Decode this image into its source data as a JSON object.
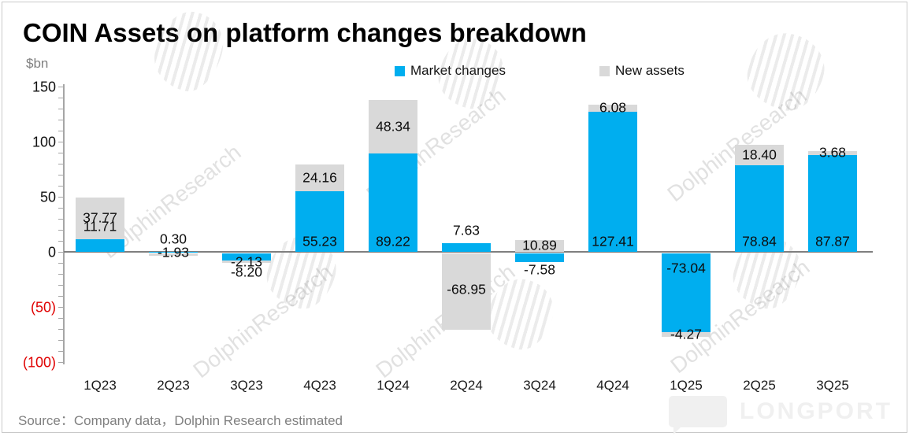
{
  "title": "COIN Assets on platform changes breakdown",
  "y_axis_unit": "$bn",
  "legend": [
    {
      "label": "Market changes",
      "color": "#00AEEF"
    },
    {
      "label": "New assets",
      "color": "#D9D9D9"
    }
  ],
  "source_note": "Source：Company data，Dolphin Research estimated",
  "watermark_text": "DolphinResearch",
  "logo_text": "LONGPORT",
  "colors": {
    "market_changes_blue": "#00AEEF",
    "new_assets_gray": "#D9D9D9",
    "negative_tick_red": "#E00000",
    "zero_line": "#7F7F7F",
    "axis_gray": "#A6A6A6",
    "muted_text": "#808080"
  },
  "chart_data": {
    "type": "bar",
    "stacked": true,
    "title": "COIN Assets on platform changes breakdown",
    "ylabel": "$bn",
    "categories": [
      "1Q23",
      "2Q23",
      "3Q23",
      "4Q23",
      "1Q24",
      "2Q24",
      "3Q24",
      "4Q24",
      "1Q25",
      "2Q25",
      "3Q25"
    ],
    "series": [
      {
        "name": "Market changes",
        "color": "#00AEEF",
        "values": [
          11.71,
          0.3,
          -8.2,
          55.23,
          89.22,
          7.63,
          -7.58,
          127.41,
          -73.04,
          78.84,
          87.87
        ]
      },
      {
        "name": "New assets",
        "color": "#D9D9D9",
        "values": [
          37.77,
          -1.93,
          -2.13,
          24.16,
          48.34,
          -68.95,
          10.89,
          6.08,
          -4.27,
          18.4,
          3.68
        ]
      }
    ],
    "ylim": [
      -100,
      150
    ],
    "y_ticks": [
      150,
      100,
      50,
      0,
      -50,
      -100
    ],
    "y_tick_labels": [
      "150",
      "100",
      "50",
      "0",
      "(50)",
      "(100)"
    ],
    "negative_ticks_in_red_parentheses": true,
    "grid": false,
    "legend_position": "top"
  }
}
